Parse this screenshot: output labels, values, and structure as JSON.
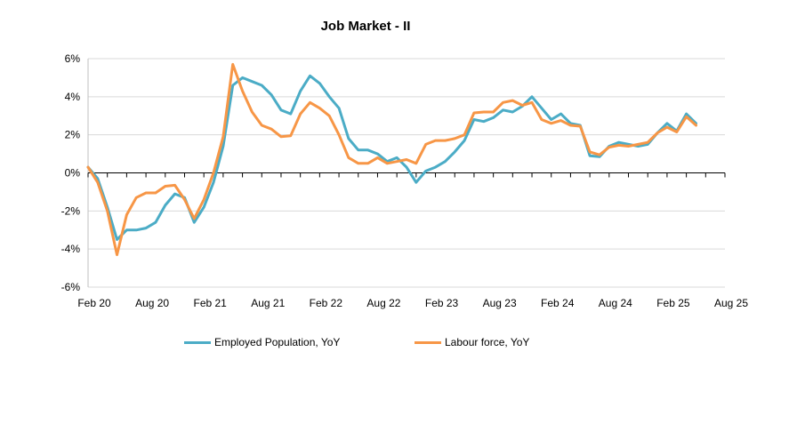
{
  "chart_data": {
    "type": "line",
    "title": "Job Market - II",
    "xlabel": "",
    "ylabel": "",
    "ylim": [
      -6,
      6
    ],
    "y_ticks": [
      -6,
      -4,
      -2,
      0,
      2,
      4,
      6
    ],
    "y_tick_labels": [
      "-6%",
      "-4%",
      "-2%",
      "0%",
      "2%",
      "4%",
      "6%"
    ],
    "x_tick_labels": [
      "Feb 20",
      "Aug 20",
      "Feb 21",
      "Aug 21",
      "Feb 22",
      "Aug 22",
      "Feb 23",
      "Aug 23",
      "Feb 24",
      "Aug 24",
      "Feb 25",
      "Aug 25"
    ],
    "x_start": "2020-02",
    "x_end": "2025-08",
    "grid": true,
    "legend_position": "bottom",
    "series": [
      {
        "name": "Employed Population, YoY",
        "color": "#4BACC6",
        "points": [
          [
            "2020-02",
            0.3
          ],
          [
            "2020-03",
            -0.3
          ],
          [
            "2020-04",
            -1.8
          ],
          [
            "2020-05",
            -3.5
          ],
          [
            "2020-06",
            -3.0
          ],
          [
            "2020-07",
            -3.0
          ],
          [
            "2020-08",
            -2.9
          ],
          [
            "2020-09",
            -2.6
          ],
          [
            "2020-10",
            -1.7
          ],
          [
            "2020-11",
            -1.1
          ],
          [
            "2020-12",
            -1.3
          ],
          [
            "2021-01",
            -2.6
          ],
          [
            "2021-02",
            -1.8
          ],
          [
            "2021-03",
            -0.5
          ],
          [
            "2021-04",
            1.4
          ],
          [
            "2021-05",
            4.6
          ],
          [
            "2021-06",
            5.0
          ],
          [
            "2021-07",
            4.8
          ],
          [
            "2021-08",
            4.6
          ],
          [
            "2021-09",
            4.1
          ],
          [
            "2021-10",
            3.3
          ],
          [
            "2021-11",
            3.1
          ],
          [
            "2021-12",
            4.3
          ],
          [
            "2022-01",
            5.1
          ],
          [
            "2022-02",
            4.7
          ],
          [
            "2022-03",
            4.0
          ],
          [
            "2022-04",
            3.4
          ],
          [
            "2022-05",
            1.8
          ],
          [
            "2022-06",
            1.2
          ],
          [
            "2022-07",
            1.2
          ],
          [
            "2022-08",
            1.0
          ],
          [
            "2022-09",
            0.6
          ],
          [
            "2022-10",
            0.8
          ],
          [
            "2022-11",
            0.3
          ],
          [
            "2022-12",
            -0.5
          ],
          [
            "2023-01",
            0.1
          ],
          [
            "2023-02",
            0.3
          ],
          [
            "2023-03",
            0.6
          ],
          [
            "2023-04",
            1.1
          ],
          [
            "2023-05",
            1.7
          ],
          [
            "2023-06",
            2.8
          ],
          [
            "2023-07",
            2.7
          ],
          [
            "2023-08",
            2.9
          ],
          [
            "2023-09",
            3.3
          ],
          [
            "2023-10",
            3.2
          ],
          [
            "2023-11",
            3.5
          ],
          [
            "2023-12",
            4.0
          ],
          [
            "2024-01",
            3.4
          ],
          [
            "2024-02",
            2.8
          ],
          [
            "2024-03",
            3.1
          ],
          [
            "2024-04",
            2.6
          ],
          [
            "2024-05",
            2.5
          ],
          [
            "2024-06",
            0.9
          ],
          [
            "2024-07",
            0.85
          ],
          [
            "2024-08",
            1.4
          ],
          [
            "2024-09",
            1.6
          ],
          [
            "2024-10",
            1.5
          ],
          [
            "2024-11",
            1.4
          ],
          [
            "2024-12",
            1.5
          ],
          [
            "2025-01",
            2.1
          ],
          [
            "2025-02",
            2.6
          ],
          [
            "2025-03",
            2.2
          ],
          [
            "2025-04",
            3.1
          ],
          [
            "2025-05",
            2.6
          ]
        ]
      },
      {
        "name": "Labour force, YoY",
        "color": "#F79646",
        "points": [
          [
            "2020-02",
            0.3
          ],
          [
            "2020-03",
            -0.5
          ],
          [
            "2020-04",
            -2.0
          ],
          [
            "2020-05",
            -4.3
          ],
          [
            "2020-06",
            -2.2
          ],
          [
            "2020-07",
            -1.3
          ],
          [
            "2020-08",
            -1.05
          ],
          [
            "2020-09",
            -1.05
          ],
          [
            "2020-10",
            -0.7
          ],
          [
            "2020-11",
            -0.65
          ],
          [
            "2020-12",
            -1.4
          ],
          [
            "2021-01",
            -2.4
          ],
          [
            "2021-02",
            -1.4
          ],
          [
            "2021-03",
            0.0
          ],
          [
            "2021-04",
            1.9
          ],
          [
            "2021-05",
            5.7
          ],
          [
            "2021-06",
            4.3
          ],
          [
            "2021-07",
            3.2
          ],
          [
            "2021-08",
            2.5
          ],
          [
            "2021-09",
            2.3
          ],
          [
            "2021-10",
            1.9
          ],
          [
            "2021-11",
            1.95
          ],
          [
            "2021-12",
            3.1
          ],
          [
            "2022-01",
            3.7
          ],
          [
            "2022-02",
            3.4
          ],
          [
            "2022-03",
            3.0
          ],
          [
            "2022-04",
            2.0
          ],
          [
            "2022-05",
            0.8
          ],
          [
            "2022-06",
            0.5
          ],
          [
            "2022-07",
            0.5
          ],
          [
            "2022-08",
            0.8
          ],
          [
            "2022-09",
            0.5
          ],
          [
            "2022-10",
            0.6
          ],
          [
            "2022-11",
            0.7
          ],
          [
            "2022-12",
            0.5
          ],
          [
            "2023-01",
            1.5
          ],
          [
            "2023-02",
            1.7
          ],
          [
            "2023-03",
            1.7
          ],
          [
            "2023-04",
            1.8
          ],
          [
            "2023-05",
            2.0
          ],
          [
            "2023-06",
            3.15
          ],
          [
            "2023-07",
            3.2
          ],
          [
            "2023-08",
            3.2
          ],
          [
            "2023-09",
            3.7
          ],
          [
            "2023-10",
            3.8
          ],
          [
            "2023-11",
            3.55
          ],
          [
            "2023-12",
            3.7
          ],
          [
            "2024-01",
            2.8
          ],
          [
            "2024-02",
            2.6
          ],
          [
            "2024-03",
            2.75
          ],
          [
            "2024-04",
            2.5
          ],
          [
            "2024-05",
            2.45
          ],
          [
            "2024-06",
            1.1
          ],
          [
            "2024-07",
            0.95
          ],
          [
            "2024-08",
            1.35
          ],
          [
            "2024-09",
            1.45
          ],
          [
            "2024-10",
            1.4
          ],
          [
            "2024-11",
            1.5
          ],
          [
            "2024-12",
            1.6
          ],
          [
            "2025-01",
            2.1
          ],
          [
            "2025-02",
            2.4
          ],
          [
            "2025-03",
            2.15
          ],
          [
            "2025-04",
            2.95
          ],
          [
            "2025-05",
            2.5
          ]
        ]
      }
    ]
  }
}
